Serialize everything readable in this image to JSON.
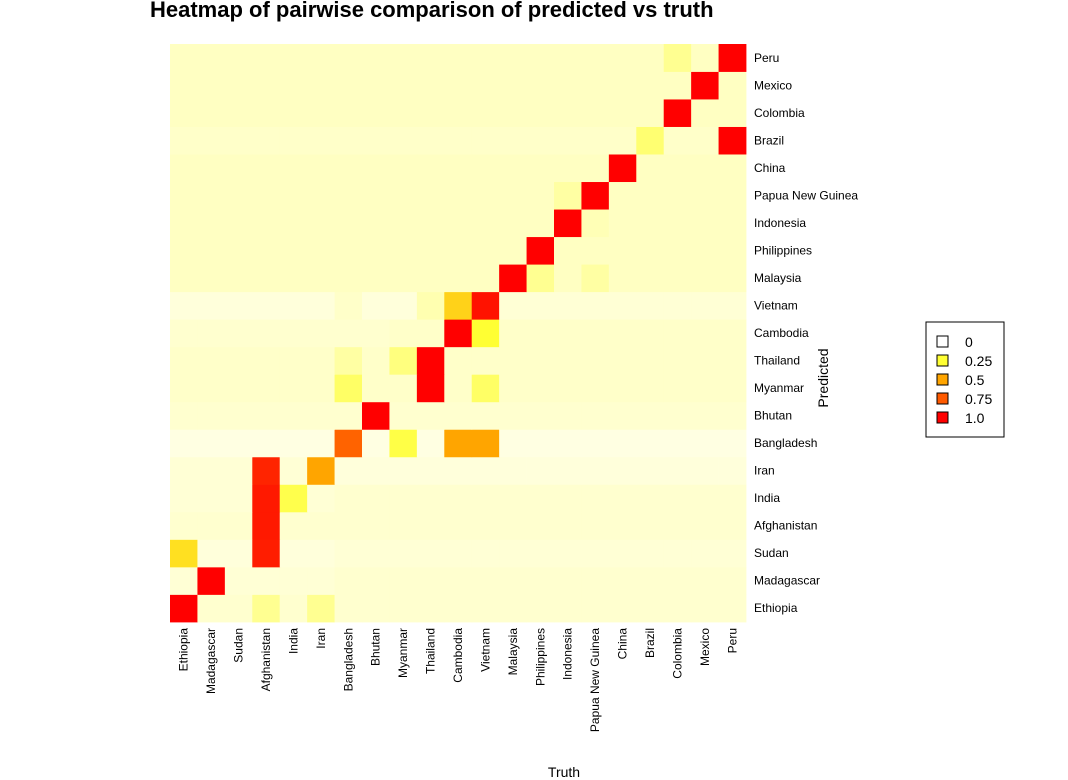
{
  "chart_data": {
    "type": "heatmap",
    "title": "Heatmap of pairwise comparison of predicted vs truth",
    "xlabel": "Truth",
    "ylabel": "Predicted",
    "x_categories": [
      "Ethiopia",
      "Madagascar",
      "Sudan",
      "Afghanistan",
      "India",
      "Iran",
      "Bangladesh",
      "Bhutan",
      "Myanmar",
      "Thailand",
      "Cambodia",
      "Vietnam",
      "Malaysia",
      "Philippines",
      "Indonesia",
      "Papua New Guinea",
      "China",
      "Brazil",
      "Colombia",
      "Mexico",
      "Peru"
    ],
    "y_categories": [
      "Ethiopia",
      "Madagascar",
      "Sudan",
      "Afghanistan",
      "India",
      "Iran",
      "Bangladesh",
      "Bhutan",
      "Myanmar",
      "Thailand",
      "Cambodia",
      "Vietnam",
      "Malaysia",
      "Philippines",
      "Indonesia",
      "Papua New Guinea",
      "China",
      "Brazil",
      "Colombia",
      "Mexico",
      "Peru"
    ],
    "values": [
      [
        1.0,
        0.05,
        0.05,
        0.15,
        0.05,
        0.15,
        0.05,
        0.05,
        0.05,
        0.05,
        0.05,
        0.05,
        0.05,
        0.05,
        0.05,
        0.05,
        0.05,
        0.05,
        0.05,
        0.05,
        0.05
      ],
      [
        0.04,
        1.0,
        0.04,
        0.04,
        0.04,
        0.04,
        0.05,
        0.05,
        0.05,
        0.05,
        0.05,
        0.05,
        0.05,
        0.05,
        0.05,
        0.05,
        0.05,
        0.05,
        0.05,
        0.05,
        0.05
      ],
      [
        0.37,
        0.03,
        0.03,
        0.92,
        0.03,
        0.03,
        0.04,
        0.04,
        0.04,
        0.04,
        0.04,
        0.04,
        0.04,
        0.04,
        0.04,
        0.04,
        0.04,
        0.04,
        0.04,
        0.04,
        0.04
      ],
      [
        0.05,
        0.05,
        0.05,
        0.93,
        0.05,
        0.05,
        0.05,
        0.05,
        0.05,
        0.05,
        0.05,
        0.05,
        0.05,
        0.05,
        0.05,
        0.05,
        0.05,
        0.05,
        0.05,
        0.05,
        0.05
      ],
      [
        0.04,
        0.04,
        0.04,
        0.93,
        0.26,
        0.04,
        0.05,
        0.05,
        0.05,
        0.05,
        0.05,
        0.05,
        0.05,
        0.05,
        0.05,
        0.05,
        0.05,
        0.05,
        0.05,
        0.05,
        0.05
      ],
      [
        0.04,
        0.04,
        0.04,
        0.9,
        0.04,
        0.5,
        0.03,
        0.03,
        0.03,
        0.03,
        0.03,
        0.03,
        0.03,
        0.03,
        0.03,
        0.03,
        0.03,
        0.03,
        0.03,
        0.03,
        0.03
      ],
      [
        0.02,
        0.02,
        0.02,
        0.02,
        0.02,
        0.02,
        0.72,
        0.02,
        0.27,
        0.02,
        0.5,
        0.5,
        0.02,
        0.02,
        0.02,
        0.02,
        0.02,
        0.02,
        0.02,
        0.02,
        0.02
      ],
      [
        0.05,
        0.05,
        0.05,
        0.05,
        0.05,
        0.05,
        0.05,
        1.0,
        0.05,
        0.05,
        0.05,
        0.05,
        0.05,
        0.05,
        0.05,
        0.05,
        0.05,
        0.05,
        0.05,
        0.05,
        0.05
      ],
      [
        0.06,
        0.06,
        0.06,
        0.06,
        0.06,
        0.06,
        0.22,
        0.06,
        0.06,
        1.0,
        0.06,
        0.22,
        0.06,
        0.06,
        0.06,
        0.06,
        0.06,
        0.06,
        0.06,
        0.06,
        0.06
      ],
      [
        0.06,
        0.06,
        0.06,
        0.06,
        0.06,
        0.06,
        0.12,
        0.06,
        0.18,
        1.0,
        0.06,
        0.06,
        0.06,
        0.06,
        0.06,
        0.06,
        0.06,
        0.06,
        0.06,
        0.06,
        0.06
      ],
      [
        0.05,
        0.05,
        0.05,
        0.05,
        0.05,
        0.05,
        0.05,
        0.05,
        0.06,
        0.06,
        1.0,
        0.3,
        0.06,
        0.06,
        0.06,
        0.06,
        0.06,
        0.06,
        0.06,
        0.06,
        0.06
      ],
      [
        0.03,
        0.03,
        0.03,
        0.03,
        0.03,
        0.03,
        0.06,
        0.03,
        0.03,
        0.1,
        0.4,
        0.95,
        0.04,
        0.04,
        0.04,
        0.04,
        0.04,
        0.04,
        0.04,
        0.04,
        0.04
      ],
      [
        0.07,
        0.07,
        0.07,
        0.07,
        0.07,
        0.07,
        0.07,
        0.07,
        0.07,
        0.07,
        0.07,
        0.07,
        1.0,
        0.15,
        0.07,
        0.12,
        0.07,
        0.07,
        0.07,
        0.07,
        0.07
      ],
      [
        0.07,
        0.07,
        0.07,
        0.07,
        0.07,
        0.07,
        0.07,
        0.07,
        0.07,
        0.07,
        0.07,
        0.07,
        0.07,
        1.0,
        0.07,
        0.07,
        0.07,
        0.07,
        0.07,
        0.07,
        0.07
      ],
      [
        0.07,
        0.07,
        0.07,
        0.07,
        0.07,
        0.07,
        0.07,
        0.07,
        0.07,
        0.07,
        0.07,
        0.07,
        0.07,
        0.07,
        1.0,
        0.09,
        0.07,
        0.07,
        0.07,
        0.07,
        0.07
      ],
      [
        0.07,
        0.07,
        0.07,
        0.07,
        0.07,
        0.07,
        0.07,
        0.07,
        0.07,
        0.07,
        0.07,
        0.07,
        0.07,
        0.07,
        0.12,
        1.0,
        0.07,
        0.07,
        0.07,
        0.07,
        0.07
      ],
      [
        0.07,
        0.07,
        0.07,
        0.07,
        0.07,
        0.07,
        0.07,
        0.07,
        0.07,
        0.07,
        0.07,
        0.07,
        0.07,
        0.07,
        0.07,
        0.07,
        1.0,
        0.07,
        0.07,
        0.07,
        0.07
      ],
      [
        0.06,
        0.06,
        0.06,
        0.06,
        0.06,
        0.06,
        0.06,
        0.06,
        0.06,
        0.06,
        0.06,
        0.06,
        0.06,
        0.06,
        0.06,
        0.06,
        0.06,
        0.2,
        0.06,
        0.06,
        1.0
      ],
      [
        0.07,
        0.07,
        0.07,
        0.07,
        0.07,
        0.07,
        0.07,
        0.07,
        0.07,
        0.07,
        0.07,
        0.07,
        0.07,
        0.07,
        0.07,
        0.07,
        0.07,
        0.07,
        1.0,
        0.07,
        0.07
      ],
      [
        0.07,
        0.07,
        0.07,
        0.07,
        0.07,
        0.07,
        0.07,
        0.07,
        0.07,
        0.07,
        0.07,
        0.07,
        0.07,
        0.07,
        0.07,
        0.07,
        0.07,
        0.07,
        0.07,
        1.0,
        0.07
      ],
      [
        0.07,
        0.07,
        0.07,
        0.07,
        0.07,
        0.07,
        0.07,
        0.07,
        0.07,
        0.07,
        0.07,
        0.07,
        0.07,
        0.07,
        0.07,
        0.07,
        0.07,
        0.07,
        0.15,
        0.07,
        1.0
      ]
    ],
    "color_scale": {
      "stops": [
        0,
        0.25,
        0.5,
        0.75,
        1.0
      ],
      "colors": [
        "#ffffff",
        "#ffff33",
        "#ffa500",
        "#ff5a00",
        "#ff0000"
      ]
    },
    "legend": {
      "placement": "right",
      "entries": [
        {
          "label": "0",
          "color": "#ffffff"
        },
        {
          "label": "0.25",
          "color": "#ffff33"
        },
        {
          "label": "0.5",
          "color": "#ffa500"
        },
        {
          "label": "0.75",
          "color": "#ff5a00"
        },
        {
          "label": "1.0",
          "color": "#ff0000"
        }
      ]
    }
  }
}
